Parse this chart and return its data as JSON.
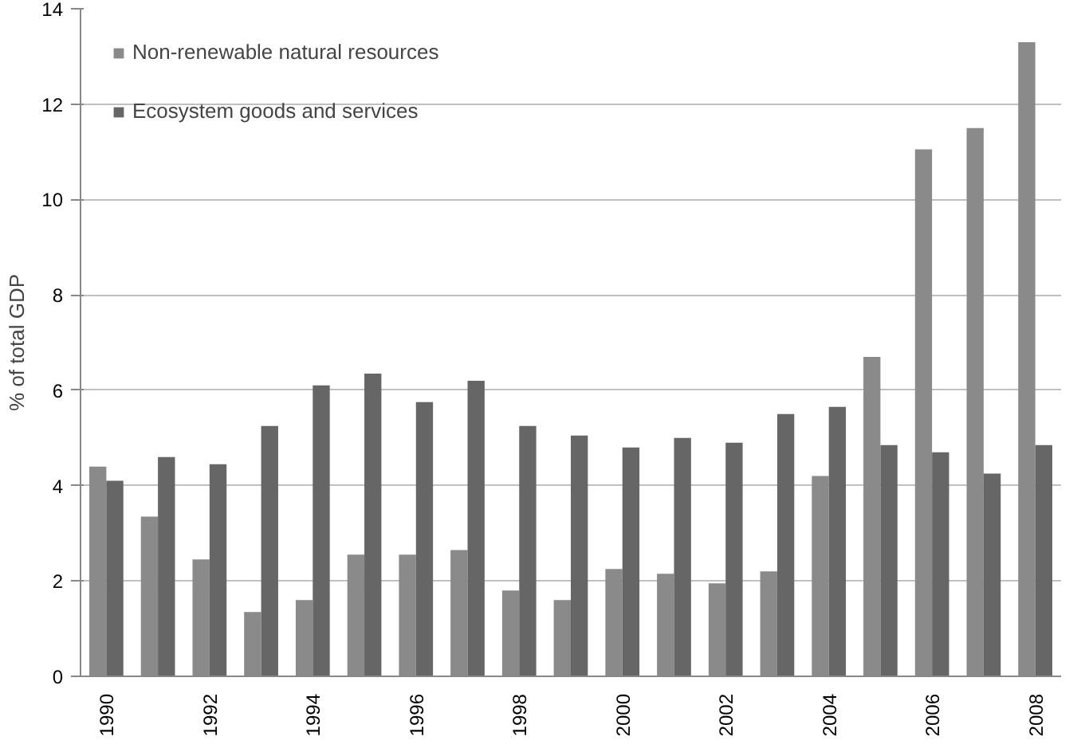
{
  "chart_data": {
    "type": "bar",
    "ylabel": "% of total GDP",
    "categories": [
      "1990",
      null,
      "1992",
      null,
      "1994",
      null,
      "1996",
      null,
      "1998",
      null,
      "2000",
      null,
      "2002",
      null,
      "2004",
      null,
      "2006",
      null,
      "2008"
    ],
    "series": [
      {
        "name": "Non-renewable natural resources",
        "color": "#8a8a8a",
        "values": [
          4.4,
          3.35,
          2.45,
          1.35,
          1.6,
          2.55,
          2.55,
          2.65,
          1.8,
          1.6,
          2.25,
          2.15,
          1.95,
          2.2,
          4.2,
          6.7,
          11.05,
          11.5,
          13.3
        ]
      },
      {
        "name": "Ecosystem goods and services",
        "color": "#666666",
        "values": [
          4.1,
          4.6,
          4.45,
          5.25,
          6.1,
          6.35,
          5.75,
          6.2,
          5.25,
          5.05,
          4.8,
          5.0,
          4.9,
          5.5,
          5.65,
          4.85,
          4.7,
          4.25,
          4.85
        ]
      }
    ],
    "ylim": [
      0,
      14
    ],
    "yticks": [
      0,
      2,
      4,
      6,
      8,
      10,
      12,
      14
    ],
    "grid": "y",
    "legend": "top left"
  }
}
